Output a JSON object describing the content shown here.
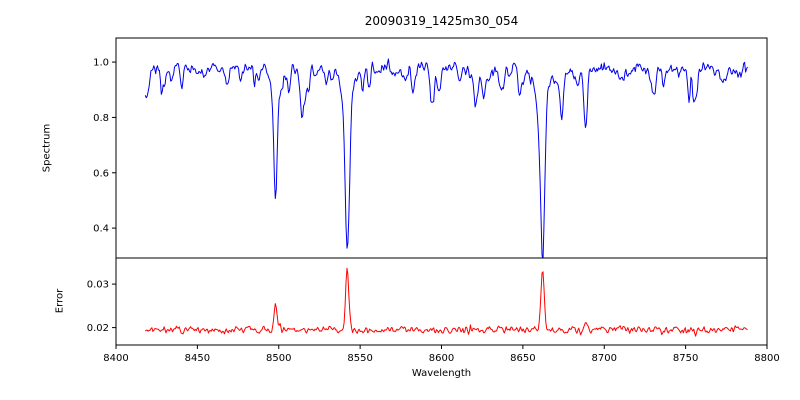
{
  "chart_data": {
    "type": "line",
    "title": "20090319_1425m30_054",
    "xlabel": "Wavelength",
    "xlim": [
      8400,
      8800
    ],
    "x_range": [
      8418,
      8788
    ],
    "xticks": [
      8400,
      8450,
      8500,
      8550,
      8600,
      8650,
      8700,
      8750,
      8800
    ],
    "xtick_labels": [
      "8400",
      "8450",
      "8500",
      "8550",
      "8600",
      "8650",
      "8700",
      "8750",
      "8800"
    ],
    "samples": 640,
    "seed": 20090319,
    "panels": [
      {
        "name": "spectrum",
        "ylabel": "Spectrum",
        "color": "#0000ee",
        "ylim": [
          0.292,
          1.087
        ],
        "yticks": [
          0.4,
          0.6,
          0.8,
          1.0
        ],
        "ytick_labels": [
          "0.4",
          "0.6",
          "0.8",
          "1.0"
        ],
        "continuum": 0.975,
        "noise_sigma": 0.016,
        "absorption_lines": [
          {
            "center": 8498.0,
            "depth": 0.385,
            "sigma": 1.0
          },
          {
            "center": 8498.0,
            "depth": 0.07,
            "sigma": 2.6
          },
          {
            "center": 8542.1,
            "depth": 0.535,
            "sigma": 1.3
          },
          {
            "center": 8542.1,
            "depth": 0.1,
            "sigma": 3.6
          },
          {
            "center": 8662.1,
            "depth": 0.5,
            "sigma": 1.25
          },
          {
            "center": 8662.1,
            "depth": 0.1,
            "sigma": 3.3
          },
          {
            "center": 8688.6,
            "depth": 0.19,
            "sigma": 0.9
          },
          {
            "center": 8434.0,
            "depth": 0.05,
            "sigma": 0.8
          },
          {
            "center": 8468.5,
            "depth": 0.07,
            "sigma": 0.8
          },
          {
            "center": 8514.1,
            "depth": 0.1,
            "sigma": 0.9
          },
          {
            "center": 8518.0,
            "depth": 0.06,
            "sigma": 0.7
          },
          {
            "center": 8582.9,
            "depth": 0.06,
            "sigma": 0.8
          },
          {
            "center": 8598.8,
            "depth": 0.07,
            "sigma": 0.8
          },
          {
            "center": 8611.0,
            "depth": 0.05,
            "sigma": 0.7
          },
          {
            "center": 8621.4,
            "depth": 0.06,
            "sigma": 0.8
          },
          {
            "center": 8648.0,
            "depth": 0.05,
            "sigma": 0.7
          },
          {
            "center": 8674.7,
            "depth": 0.06,
            "sigma": 0.8
          },
          {
            "center": 8712.0,
            "depth": 0.05,
            "sigma": 0.7
          },
          {
            "center": 8736.0,
            "depth": 0.06,
            "sigma": 0.8
          },
          {
            "center": 8757.0,
            "depth": 0.05,
            "sigma": 0.7
          },
          {
            "center": 8772.0,
            "depth": 0.06,
            "sigma": 0.8
          }
        ],
        "minor_line_count": 70,
        "minor_depth_range": [
          0.02,
          0.12
        ],
        "minor_sigma_range": [
          0.5,
          1.3
        ]
      },
      {
        "name": "error",
        "ylabel": "Error",
        "color": "#ff0000",
        "ylim": [
          0.016,
          0.036
        ],
        "yticks": [
          0.02,
          0.03
        ],
        "ytick_labels": [
          "0.02",
          "0.03"
        ],
        "baseline": 0.0195,
        "noise_sigma": 0.0006,
        "spikes": [
          {
            "center": 8498.0,
            "height": 0.0062,
            "sigma": 0.9
          },
          {
            "center": 8542.1,
            "height": 0.014,
            "sigma": 1.0
          },
          {
            "center": 8662.1,
            "height": 0.0135,
            "sigma": 1.0
          },
          {
            "center": 8688.6,
            "height": 0.0023,
            "sigma": 0.8
          }
        ]
      }
    ]
  }
}
